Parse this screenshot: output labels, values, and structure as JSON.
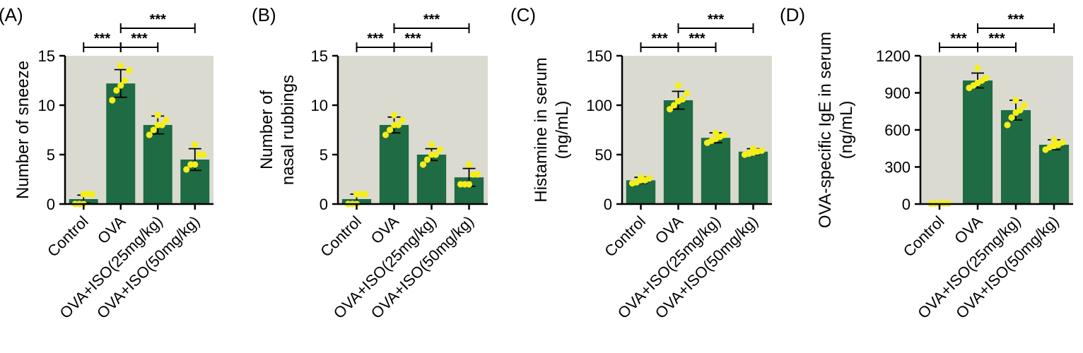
{
  "colors": {
    "plot_bg": "#dadad0",
    "bar": "#1e6b44",
    "point": "#f4ee1a",
    "axis": "#000000"
  },
  "chart_data": [
    {
      "type": "bar",
      "panel_label": "(A)",
      "ylabel_lines": [
        "Number of sneeze"
      ],
      "ylim": [
        0,
        15
      ],
      "yticks": [
        0,
        5,
        10,
        15
      ],
      "ytick_labels": [
        "0",
        "5",
        "10",
        "15"
      ],
      "categories": [
        "Control",
        "OVA",
        "OVA+ISO(25mg/kg)",
        "OVA+ISO(50mg/kg)"
      ],
      "values": [
        0.5,
        12.2,
        8.0,
        4.5
      ],
      "errors": [
        0.4,
        1.4,
        0.9,
        1.1
      ],
      "points": [
        [
          0,
          0,
          0,
          1,
          1,
          1
        ],
        [
          10.5,
          11.5,
          12,
          12.5,
          13.5,
          14
        ],
        [
          7,
          7.5,
          8,
          8,
          8.5,
          9
        ],
        [
          3.5,
          4,
          4,
          5,
          5,
          6
        ]
      ],
      "significance": [
        {
          "from": 0,
          "to": 1,
          "label": "***",
          "level": 1
        },
        {
          "from": 1,
          "to": 2,
          "label": "***",
          "level": 1
        },
        {
          "from": 1,
          "to": 3,
          "label": "***",
          "level": 2
        }
      ]
    },
    {
      "type": "bar",
      "panel_label": "(B)",
      "ylabel_lines": [
        "Number of",
        "nasal rubbings"
      ],
      "ylim": [
        0,
        15
      ],
      "yticks": [
        0,
        5,
        10,
        15
      ],
      "ytick_labels": [
        "0",
        "5",
        "10",
        "15"
      ],
      "categories": [
        "Control",
        "OVA",
        "OVA+ISO(25mg/kg)",
        "OVA+ISO(50mg/kg)"
      ],
      "values": [
        0.5,
        8.0,
        5.0,
        2.7
      ],
      "errors": [
        0.5,
        0.8,
        0.6,
        0.9
      ],
      "points": [
        [
          0,
          0,
          0,
          1,
          1,
          1
        ],
        [
          7,
          7.5,
          8,
          8,
          8.5,
          9
        ],
        [
          4,
          4.5,
          5,
          5,
          5.5,
          6
        ],
        [
          2,
          2,
          2,
          3,
          3,
          4
        ]
      ],
      "significance": [
        {
          "from": 0,
          "to": 1,
          "label": "***",
          "level": 1
        },
        {
          "from": 1,
          "to": 2,
          "label": "***",
          "level": 1
        },
        {
          "from": 1,
          "to": 3,
          "label": "***",
          "level": 2
        }
      ]
    },
    {
      "type": "bar",
      "panel_label": "(C)",
      "ylabel_lines": [
        "Histamine in serum",
        "(ng/mL)"
      ],
      "ylim": [
        0,
        150
      ],
      "yticks": [
        0,
        50,
        100,
        150
      ],
      "ytick_labels": [
        "0",
        "50",
        "100",
        "150"
      ],
      "categories": [
        "Control",
        "OVA",
        "OVA+ISO(25mg/kg)",
        "OVA+ISO(50mg/kg)"
      ],
      "values": [
        24,
        105,
        67,
        53
      ],
      "errors": [
        3,
        9,
        5,
        3
      ],
      "points": [
        [
          21,
          22,
          24,
          24,
          26,
          27
        ],
        [
          96,
          100,
          104,
          106,
          112,
          120
        ],
        [
          62,
          64,
          66,
          68,
          70,
          72
        ],
        [
          50,
          51,
          52,
          53,
          54,
          56
        ]
      ],
      "significance": [
        {
          "from": 0,
          "to": 1,
          "label": "***",
          "level": 1
        },
        {
          "from": 1,
          "to": 2,
          "label": "***",
          "level": 1
        },
        {
          "from": 1,
          "to": 3,
          "label": "***",
          "level": 2
        }
      ]
    },
    {
      "type": "bar",
      "panel_label": "(D)",
      "ylabel_lines": [
        "OVA-specific IgE in serum",
        "(ng/mL)"
      ],
      "ylim": [
        0,
        1200
      ],
      "yticks": [
        0,
        300,
        600,
        900,
        1200
      ],
      "ytick_labels": [
        "0",
        "300",
        "600",
        "900",
        "1200"
      ],
      "categories": [
        "Control",
        "OVA",
        "OVA+ISO(25mg/kg)",
        "OVA+ISO(50mg/kg)"
      ],
      "values": [
        5,
        1000,
        760,
        480
      ],
      "errors": [
        3,
        60,
        80,
        40
      ],
      "points": [
        [
          3,
          4,
          5,
          5,
          6,
          7
        ],
        [
          940,
          960,
          980,
          1000,
          1020,
          1100
        ],
        [
          640,
          700,
          740,
          760,
          800,
          840
        ],
        [
          440,
          460,
          470,
          480,
          500,
          520
        ]
      ],
      "significance": [
        {
          "from": 0,
          "to": 1,
          "label": "***",
          "level": 1
        },
        {
          "from": 1,
          "to": 2,
          "label": "***",
          "level": 1
        },
        {
          "from": 1,
          "to": 3,
          "label": "***",
          "level": 2
        }
      ]
    }
  ]
}
